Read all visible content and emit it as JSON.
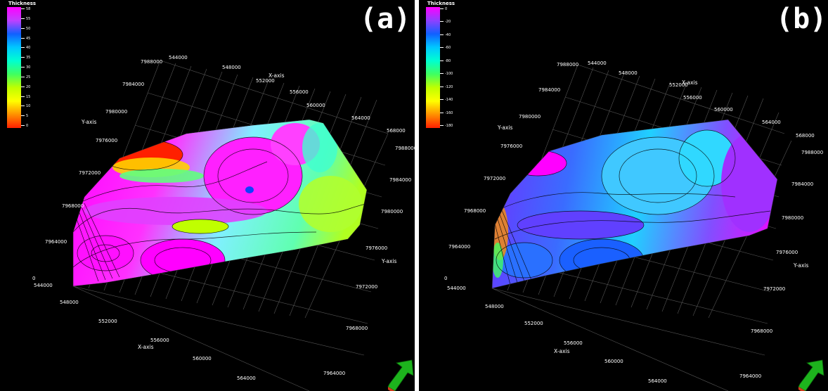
{
  "panels": [
    {
      "label": "(a)",
      "legend": {
        "title": "Thickness",
        "ticks": [
          "58",
          "55",
          "50",
          "45",
          "40",
          "35",
          "30",
          "25",
          "20",
          "15",
          "10",
          "5",
          "0"
        ],
        "colors": [
          "#ff00ff",
          "#c040ff",
          "#1060ff",
          "#00c8ff",
          "#00ffd0",
          "#40ff60",
          "#c0ff00",
          "#ffff00",
          "#ff9000",
          "#ff2000"
        ]
      },
      "axes": {
        "x_label": "X-axis",
        "y_label": "Y-axis",
        "zero_label": "0",
        "x_ticks_top": [
          "544000",
          "548000",
          "552000",
          "556000",
          "560000",
          "564000",
          "568000"
        ],
        "x_ticks_bottom": [
          "544000",
          "548000",
          "552000",
          "556000",
          "560000",
          "564000"
        ],
        "y_ticks_left": [
          "7988000",
          "7984000",
          "7980000",
          "7976000",
          "7972000",
          "7968000",
          "7964000"
        ],
        "y_ticks_right": [
          "7988000",
          "7984000",
          "7980000",
          "7976000",
          "7972000",
          "7968000",
          "7964000"
        ]
      }
    },
    {
      "label": "(b)",
      "legend": {
        "title": "Thickness",
        "ticks": [
          "0",
          "-20",
          "-40",
          "-60",
          "-80",
          "-100",
          "-120",
          "-140",
          "-160",
          "-180"
        ],
        "colors": [
          "#ff00ff",
          "#9040ff",
          "#1060ff",
          "#00c8ff",
          "#00ffd0",
          "#40ff60",
          "#c0ff00",
          "#ffff00",
          "#ff9000",
          "#ff2000"
        ]
      },
      "axes": {
        "x_label": "X-axis",
        "y_label": "Y-axis",
        "zero_label": "0",
        "x_ticks_top": [
          "544000",
          "548000",
          "552000",
          "556000",
          "560000",
          "564000",
          "568000"
        ],
        "x_ticks_bottom": [
          "544000",
          "548000",
          "552000",
          "556000",
          "560000",
          "564000"
        ],
        "y_ticks_left": [
          "7988000",
          "7984000",
          "7980000",
          "7976000",
          "7972000",
          "7968000",
          "7964000"
        ],
        "y_ticks_right": [
          "7988000",
          "7984000",
          "7980000",
          "7976000",
          "7972000",
          "7968000",
          "7964000"
        ]
      }
    }
  ]
}
